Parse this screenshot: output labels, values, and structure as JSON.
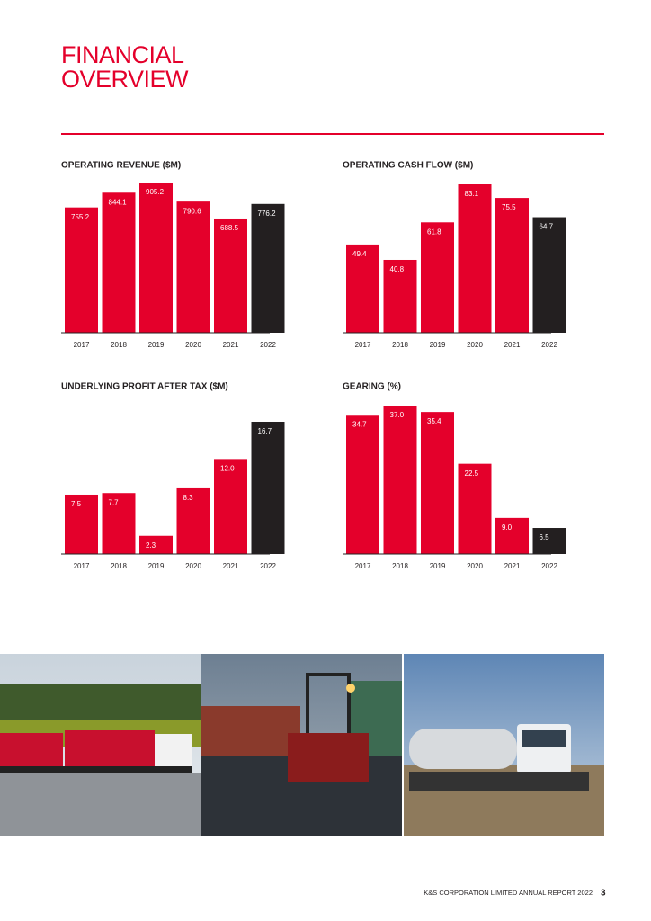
{
  "header": {
    "title": "FINANCIAL OVERVIEW"
  },
  "chart_data": [
    {
      "type": "bar",
      "title": "OPERATING REVENUE ($M)",
      "categories": [
        "2017",
        "2018",
        "2019",
        "2020",
        "2021",
        "2022"
      ],
      "values": [
        755.2,
        844.1,
        905.2,
        790.6,
        688.5,
        776.2
      ],
      "value_labels": [
        "755.2",
        "844.1",
        "905.2",
        "790.6",
        "688.5",
        "776.2"
      ],
      "colors": [
        "#e4002b",
        "#e4002b",
        "#e4002b",
        "#e4002b",
        "#e4002b",
        "#231f20"
      ]
    },
    {
      "type": "bar",
      "title": "OPERATING CASH FLOW ($M)",
      "categories": [
        "2017",
        "2018",
        "2019",
        "2020",
        "2021",
        "2022"
      ],
      "values": [
        49.4,
        40.8,
        61.8,
        83.1,
        75.5,
        64.7
      ],
      "value_labels": [
        "49.4",
        "40.8",
        "61.8",
        "83.1",
        "75.5",
        "64.7"
      ],
      "colors": [
        "#e4002b",
        "#e4002b",
        "#e4002b",
        "#e4002b",
        "#e4002b",
        "#231f20"
      ]
    },
    {
      "type": "bar",
      "title": "UNDERLYING PROFIT AFTER TAX ($M)",
      "categories": [
        "2017",
        "2018",
        "2019",
        "2020",
        "2021",
        "2022"
      ],
      "values": [
        7.5,
        7.7,
        2.3,
        8.3,
        12.0,
        16.7
      ],
      "value_labels": [
        "7.5",
        "7.7",
        "2.3",
        "8.3",
        "12.0",
        "16.7"
      ],
      "colors": [
        "#e4002b",
        "#e4002b",
        "#e4002b",
        "#e4002b",
        "#e4002b",
        "#231f20"
      ]
    },
    {
      "type": "bar",
      "title": "GEARING (%)",
      "categories": [
        "2017",
        "2018",
        "2019",
        "2020",
        "2021",
        "2022"
      ],
      "values": [
        34.7,
        37.0,
        35.4,
        22.5,
        9.0,
        6.5
      ],
      "value_labels": [
        "34.7",
        "37.0",
        "35.4",
        "22.5",
        "9.0",
        "6.5"
      ],
      "colors": [
        "#e4002b",
        "#e4002b",
        "#e4002b",
        "#e4002b",
        "#e4002b",
        "#231f20"
      ]
    }
  ],
  "footer": {
    "text": "K&S CORPORATION LIMITED ANNUAL REPORT 2022",
    "page": "3"
  }
}
